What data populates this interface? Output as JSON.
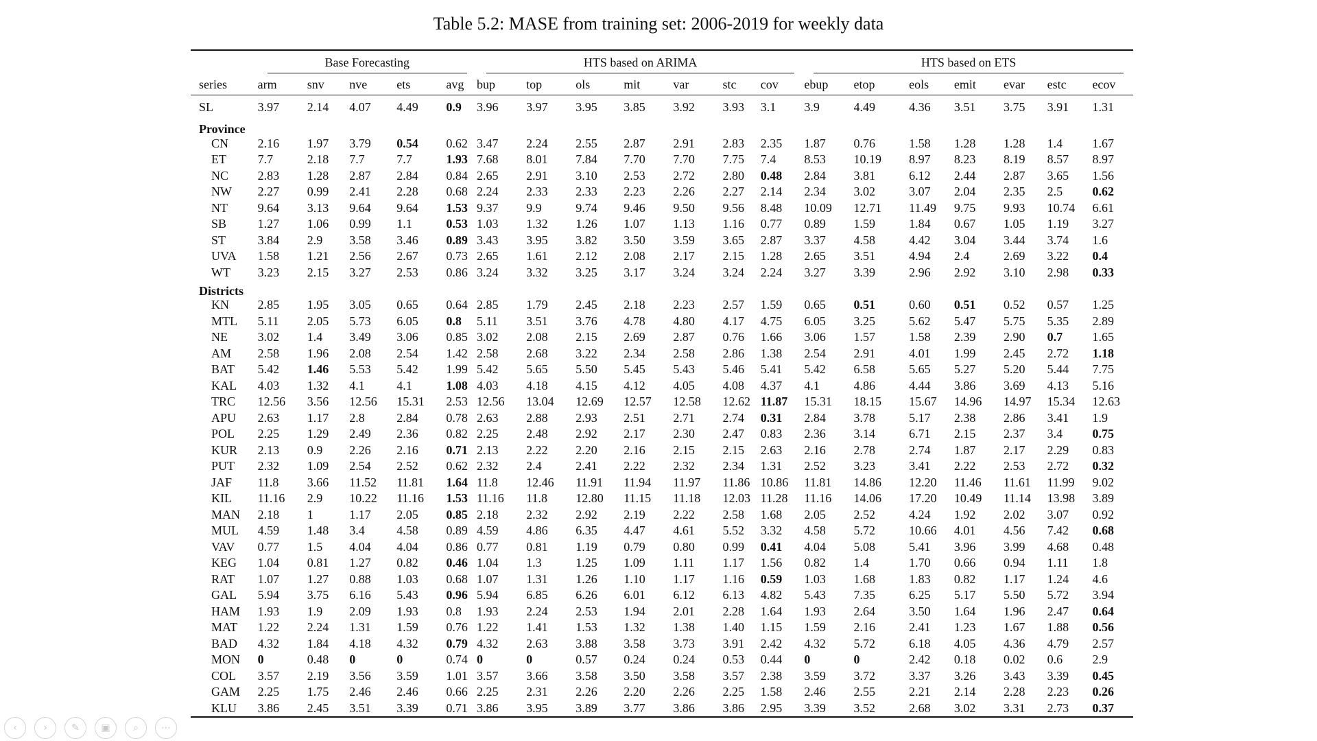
{
  "caption": "Table 5.2: MASE from training set: 2006-2019 for weekly data",
  "groups": {
    "base": "Base Forecasting",
    "arima": "HTS based on ARIMA",
    "ets": "HTS based on ETS"
  },
  "columns": [
    "series",
    "arm",
    "snv",
    "nve",
    "ets",
    "avg",
    "bup",
    "top",
    "ols",
    "mit",
    "var",
    "stc",
    "cov",
    "ebup",
    "etop",
    "eols",
    "emit",
    "evar",
    "estc",
    "ecov"
  ],
  "sections": {
    "province": "Province",
    "districts": "Districts"
  },
  "rows": {
    "national": [
      {
        "name": "SL",
        "v": [
          "3.97",
          "2.14",
          "4.07",
          "4.49",
          "0.9",
          "3.96",
          "3.97",
          "3.95",
          "3.85",
          "3.92",
          "3.93",
          "3.1",
          "3.9",
          "4.49",
          "4.36",
          "3.51",
          "3.75",
          "3.91",
          "1.31"
        ],
        "bold": [
          4
        ]
      }
    ],
    "province": [
      {
        "name": "CN",
        "v": [
          "2.16",
          "1.97",
          "3.79",
          "0.54",
          "0.62",
          "3.47",
          "2.24",
          "2.55",
          "2.87",
          "2.91",
          "2.83",
          "2.35",
          "1.87",
          "0.76",
          "1.58",
          "1.28",
          "1.28",
          "1.4",
          "1.67"
        ],
        "bold": [
          3
        ]
      },
      {
        "name": "ET",
        "v": [
          "7.7",
          "2.18",
          "7.7",
          "7.7",
          "1.93",
          "7.68",
          "8.01",
          "7.84",
          "7.70",
          "7.70",
          "7.75",
          "7.4",
          "8.53",
          "10.19",
          "8.97",
          "8.23",
          "8.19",
          "8.57",
          "8.97"
        ],
        "bold": [
          4
        ]
      },
      {
        "name": "NC",
        "v": [
          "2.83",
          "1.28",
          "2.87",
          "2.84",
          "0.84",
          "2.65",
          "2.91",
          "3.10",
          "2.53",
          "2.72",
          "2.80",
          "0.48",
          "2.84",
          "3.81",
          "6.12",
          "2.44",
          "2.87",
          "3.65",
          "1.56"
        ],
        "bold": [
          11
        ]
      },
      {
        "name": "NW",
        "v": [
          "2.27",
          "0.99",
          "2.41",
          "2.28",
          "0.68",
          "2.24",
          "2.33",
          "2.33",
          "2.23",
          "2.26",
          "2.27",
          "2.14",
          "2.34",
          "3.02",
          "3.07",
          "2.04",
          "2.35",
          "2.5",
          "0.62"
        ],
        "bold": [
          18
        ]
      },
      {
        "name": "NT",
        "v": [
          "9.64",
          "3.13",
          "9.64",
          "9.64",
          "1.53",
          "9.37",
          "9.9",
          "9.74",
          "9.46",
          "9.50",
          "9.56",
          "8.48",
          "10.09",
          "12.71",
          "11.49",
          "9.75",
          "9.93",
          "10.74",
          "6.61"
        ],
        "bold": [
          4
        ]
      },
      {
        "name": "SB",
        "v": [
          "1.27",
          "1.06",
          "0.99",
          "1.1",
          "0.53",
          "1.03",
          "1.32",
          "1.26",
          "1.07",
          "1.13",
          "1.16",
          "0.77",
          "0.89",
          "1.59",
          "1.84",
          "0.67",
          "1.05",
          "1.19",
          "3.27"
        ],
        "bold": [
          4
        ]
      },
      {
        "name": "ST",
        "v": [
          "3.84",
          "2.9",
          "3.58",
          "3.46",
          "0.89",
          "3.43",
          "3.95",
          "3.82",
          "3.50",
          "3.59",
          "3.65",
          "2.87",
          "3.37",
          "4.58",
          "4.42",
          "3.04",
          "3.44",
          "3.74",
          "1.6"
        ],
        "bold": [
          4
        ]
      },
      {
        "name": "UVA",
        "v": [
          "1.58",
          "1.21",
          "2.56",
          "2.67",
          "0.73",
          "2.65",
          "1.61",
          "2.12",
          "2.08",
          "2.17",
          "2.15",
          "1.28",
          "2.65",
          "3.51",
          "4.94",
          "2.4",
          "2.69",
          "3.22",
          "0.4"
        ],
        "bold": [
          18
        ]
      },
      {
        "name": "WT",
        "v": [
          "3.23",
          "2.15",
          "3.27",
          "2.53",
          "0.86",
          "3.24",
          "3.32",
          "3.25",
          "3.17",
          "3.24",
          "3.24",
          "2.24",
          "3.27",
          "3.39",
          "2.96",
          "2.92",
          "3.10",
          "2.98",
          "0.33"
        ],
        "bold": [
          18
        ]
      }
    ],
    "districts": [
      {
        "name": "KN",
        "v": [
          "2.85",
          "1.95",
          "3.05",
          "0.65",
          "0.64",
          "2.85",
          "1.79",
          "2.45",
          "2.18",
          "2.23",
          "2.57",
          "1.59",
          "0.65",
          "0.51",
          "0.60",
          "0.51",
          "0.52",
          "0.57",
          "1.25"
        ],
        "bold": [
          13,
          15
        ]
      },
      {
        "name": "MTL",
        "v": [
          "5.11",
          "2.05",
          "5.73",
          "6.05",
          "0.8",
          "5.11",
          "3.51",
          "3.76",
          "4.78",
          "4.80",
          "4.17",
          "4.75",
          "6.05",
          "3.25",
          "5.62",
          "5.47",
          "5.75",
          "5.35",
          "2.89"
        ],
        "bold": [
          4
        ]
      },
      {
        "name": "NE",
        "v": [
          "3.02",
          "1.4",
          "3.49",
          "3.06",
          "0.85",
          "3.02",
          "2.08",
          "2.15",
          "2.69",
          "2.87",
          "0.76",
          "1.66",
          "3.06",
          "1.57",
          "1.58",
          "2.39",
          "2.90",
          "0.7",
          "1.65"
        ],
        "bold": [
          17
        ]
      },
      {
        "name": "AM",
        "v": [
          "2.58",
          "1.96",
          "2.08",
          "2.54",
          "1.42",
          "2.58",
          "2.68",
          "3.22",
          "2.34",
          "2.58",
          "2.86",
          "1.38",
          "2.54",
          "2.91",
          "4.01",
          "1.99",
          "2.45",
          "2.72",
          "1.18"
        ],
        "bold": [
          18
        ]
      },
      {
        "name": "BAT",
        "v": [
          "5.42",
          "1.46",
          "5.53",
          "5.42",
          "1.99",
          "5.42",
          "5.65",
          "5.50",
          "5.45",
          "5.43",
          "5.46",
          "5.41",
          "5.42",
          "6.58",
          "5.65",
          "5.27",
          "5.20",
          "5.44",
          "7.75"
        ],
        "bold": [
          1
        ]
      },
      {
        "name": "KAL",
        "v": [
          "4.03",
          "1.32",
          "4.1",
          "4.1",
          "1.08",
          "4.03",
          "4.18",
          "4.15",
          "4.12",
          "4.05",
          "4.08",
          "4.37",
          "4.1",
          "4.86",
          "4.44",
          "3.86",
          "3.69",
          "4.13",
          "5.16"
        ],
        "bold": [
          4
        ]
      },
      {
        "name": "TRC",
        "v": [
          "12.56",
          "3.56",
          "12.56",
          "15.31",
          "2.53",
          "12.56",
          "13.04",
          "12.69",
          "12.57",
          "12.58",
          "12.62",
          "11.87",
          "15.31",
          "18.15",
          "15.67",
          "14.96",
          "14.97",
          "15.34",
          "12.63"
        ],
        "bold": [
          11
        ]
      },
      {
        "name": "APU",
        "v": [
          "2.63",
          "1.17",
          "2.8",
          "2.84",
          "0.78",
          "2.63",
          "2.88",
          "2.93",
          "2.51",
          "2.71",
          "2.74",
          "0.31",
          "2.84",
          "3.78",
          "5.17",
          "2.38",
          "2.86",
          "3.41",
          "1.9"
        ],
        "bold": [
          11
        ]
      },
      {
        "name": "POL",
        "v": [
          "2.25",
          "1.29",
          "2.49",
          "2.36",
          "0.82",
          "2.25",
          "2.48",
          "2.92",
          "2.17",
          "2.30",
          "2.47",
          "0.83",
          "2.36",
          "3.14",
          "6.71",
          "2.15",
          "2.37",
          "3.4",
          "0.75"
        ],
        "bold": [
          18
        ]
      },
      {
        "name": "KUR",
        "v": [
          "2.13",
          "0.9",
          "2.26",
          "2.16",
          "0.71",
          "2.13",
          "2.22",
          "2.20",
          "2.16",
          "2.15",
          "2.15",
          "2.63",
          "2.16",
          "2.78",
          "2.74",
          "1.87",
          "2.17",
          "2.29",
          "0.83"
        ],
        "bold": [
          4
        ]
      },
      {
        "name": "PUT",
        "v": [
          "2.32",
          "1.09",
          "2.54",
          "2.52",
          "0.62",
          "2.32",
          "2.4",
          "2.41",
          "2.22",
          "2.32",
          "2.34",
          "1.31",
          "2.52",
          "3.23",
          "3.41",
          "2.22",
          "2.53",
          "2.72",
          "0.32"
        ],
        "bold": [
          18
        ]
      },
      {
        "name": "JAF",
        "v": [
          "11.8",
          "3.66",
          "11.52",
          "11.81",
          "1.64",
          "11.8",
          "12.46",
          "11.91",
          "11.94",
          "11.97",
          "11.86",
          "10.86",
          "11.81",
          "14.86",
          "12.20",
          "11.46",
          "11.61",
          "11.99",
          "9.02"
        ],
        "bold": [
          4
        ]
      },
      {
        "name": "KIL",
        "v": [
          "11.16",
          "2.9",
          "10.22",
          "11.16",
          "1.53",
          "11.16",
          "11.8",
          "12.80",
          "11.15",
          "11.18",
          "12.03",
          "11.28",
          "11.16",
          "14.06",
          "17.20",
          "10.49",
          "11.14",
          "13.98",
          "3.89"
        ],
        "bold": [
          4
        ]
      },
      {
        "name": "MAN",
        "v": [
          "2.18",
          "1",
          "1.17",
          "2.05",
          "0.85",
          "2.18",
          "2.32",
          "2.92",
          "2.19",
          "2.22",
          "2.58",
          "1.68",
          "2.05",
          "2.52",
          "4.24",
          "1.92",
          "2.02",
          "3.07",
          "0.92"
        ],
        "bold": [
          4
        ]
      },
      {
        "name": "MUL",
        "v": [
          "4.59",
          "1.48",
          "3.4",
          "4.58",
          "0.89",
          "4.59",
          "4.86",
          "6.35",
          "4.47",
          "4.61",
          "5.52",
          "3.32",
          "4.58",
          "5.72",
          "10.66",
          "4.01",
          "4.56",
          "7.42",
          "0.68"
        ],
        "bold": [
          18
        ]
      },
      {
        "name": "VAV",
        "v": [
          "0.77",
          "1.5",
          "4.04",
          "4.04",
          "0.86",
          "0.77",
          "0.81",
          "1.19",
          "0.79",
          "0.80",
          "0.99",
          "0.41",
          "4.04",
          "5.08",
          "5.41",
          "3.96",
          "3.99",
          "4.68",
          "0.48"
        ],
        "bold": [
          11
        ]
      },
      {
        "name": "KEG",
        "v": [
          "1.04",
          "0.81",
          "1.27",
          "0.82",
          "0.46",
          "1.04",
          "1.3",
          "1.25",
          "1.09",
          "1.11",
          "1.17",
          "1.56",
          "0.82",
          "1.4",
          "1.70",
          "0.66",
          "0.94",
          "1.11",
          "1.8"
        ],
        "bold": [
          4
        ]
      },
      {
        "name": "RAT",
        "v": [
          "1.07",
          "1.27",
          "0.88",
          "1.03",
          "0.68",
          "1.07",
          "1.31",
          "1.26",
          "1.10",
          "1.17",
          "1.16",
          "0.59",
          "1.03",
          "1.68",
          "1.83",
          "0.82",
          "1.17",
          "1.24",
          "4.6"
        ],
        "bold": [
          11
        ]
      },
      {
        "name": "GAL",
        "v": [
          "5.94",
          "3.75",
          "6.16",
          "5.43",
          "0.96",
          "5.94",
          "6.85",
          "6.26",
          "6.01",
          "6.12",
          "6.13",
          "4.82",
          "5.43",
          "7.35",
          "6.25",
          "5.17",
          "5.50",
          "5.72",
          "3.94"
        ],
        "bold": [
          4
        ]
      },
      {
        "name": "HAM",
        "v": [
          "1.93",
          "1.9",
          "2.09",
          "1.93",
          "0.8",
          "1.93",
          "2.24",
          "2.53",
          "1.94",
          "2.01",
          "2.28",
          "1.64",
          "1.93",
          "2.64",
          "3.50",
          "1.64",
          "1.96",
          "2.47",
          "0.64"
        ],
        "bold": [
          18
        ]
      },
      {
        "name": "MAT",
        "v": [
          "1.22",
          "2.24",
          "1.31",
          "1.59",
          "0.76",
          "1.22",
          "1.41",
          "1.53",
          "1.32",
          "1.38",
          "1.40",
          "1.15",
          "1.59",
          "2.16",
          "2.41",
          "1.23",
          "1.67",
          "1.88",
          "0.56"
        ],
        "bold": [
          18
        ]
      },
      {
        "name": "BAD",
        "v": [
          "4.32",
          "1.84",
          "4.18",
          "4.32",
          "0.79",
          "4.32",
          "2.63",
          "3.88",
          "3.58",
          "3.73",
          "3.91",
          "2.42",
          "4.32",
          "5.72",
          "6.18",
          "4.05",
          "4.36",
          "4.79",
          "2.57"
        ],
        "bold": [
          4
        ]
      },
      {
        "name": "MON",
        "v": [
          "0",
          "0.48",
          "0",
          "0",
          "0.74",
          "0",
          "0",
          "0.57",
          "0.24",
          "0.24",
          "0.53",
          "0.44",
          "0",
          "0",
          "2.42",
          "0.18",
          "0.02",
          "0.6",
          "2.9"
        ],
        "bold": [
          0,
          2,
          3,
          5,
          6,
          12,
          13
        ]
      },
      {
        "name": "COL",
        "v": [
          "3.57",
          "2.19",
          "3.56",
          "3.59",
          "1.01",
          "3.57",
          "3.66",
          "3.58",
          "3.50",
          "3.58",
          "3.57",
          "2.38",
          "3.59",
          "3.72",
          "3.37",
          "3.26",
          "3.43",
          "3.39",
          "0.45"
        ],
        "bold": [
          18
        ]
      },
      {
        "name": "GAM",
        "v": [
          "2.25",
          "1.75",
          "2.46",
          "2.46",
          "0.66",
          "2.25",
          "2.31",
          "2.26",
          "2.20",
          "2.26",
          "2.25",
          "1.58",
          "2.46",
          "2.55",
          "2.21",
          "2.14",
          "2.28",
          "2.23",
          "0.26"
        ],
        "bold": [
          18
        ]
      },
      {
        "name": "KLU",
        "v": [
          "3.86",
          "2.45",
          "3.51",
          "3.39",
          "0.71",
          "3.86",
          "3.95",
          "3.89",
          "3.77",
          "3.86",
          "3.86",
          "2.95",
          "3.39",
          "3.52",
          "2.68",
          "3.02",
          "3.31",
          "2.73",
          "0.37"
        ],
        "bold": [
          18
        ]
      }
    ]
  },
  "toolbar": {
    "prev_icon": "‹",
    "next_icon": "›",
    "pen_icon": "✎",
    "slides_icon": "▣",
    "zoom_icon": "⌕",
    "more_icon": "⋯"
  }
}
